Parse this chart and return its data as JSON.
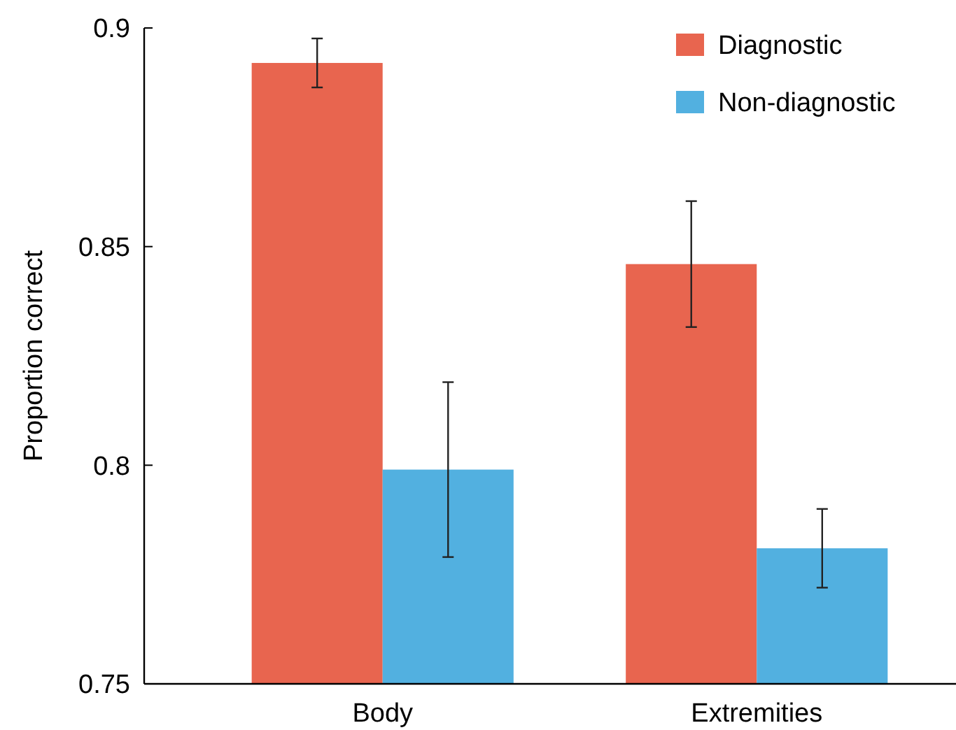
{
  "chart_data": {
    "type": "bar",
    "ylabel": "Proportion correct",
    "categories": [
      "Body",
      "Extremities"
    ],
    "series": [
      {
        "name": "Diagnostic",
        "color": "#e8654f",
        "values": [
          0.892,
          0.846
        ],
        "errors": [
          0.0056,
          0.0144
        ]
      },
      {
        "name": "Non-diagnostic",
        "color": "#52b0e0",
        "values": [
          0.799,
          0.781
        ],
        "errors": [
          0.02,
          0.009
        ]
      }
    ],
    "ylim": [
      0.75,
      0.9
    ],
    "yticks": [
      0.75,
      0.8,
      0.85,
      0.9
    ],
    "grid": false,
    "legend": "top right"
  }
}
